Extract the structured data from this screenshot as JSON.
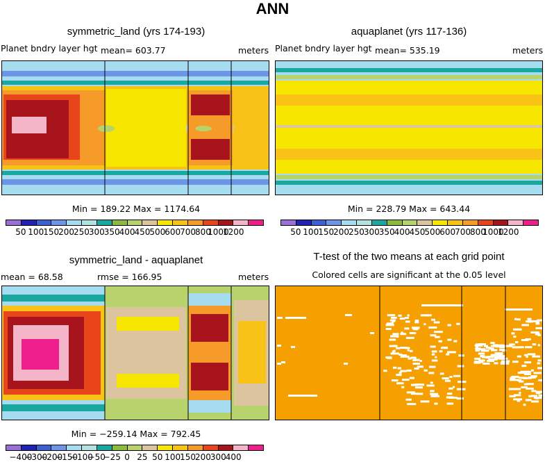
{
  "page_title": "ANN",
  "panels": [
    {
      "title": "symmetric_land (yrs 174-193)",
      "left_label": "Planet bndry layer hgt",
      "stat": "mean= 603.77",
      "units": "meters",
      "minmax": "Min = 189.22 Max = 1174.64",
      "colorbar_labels": [
        "50",
        "100",
        "150",
        "200",
        "250",
        "300",
        "350",
        "400",
        "450",
        "500",
        "600",
        "700",
        "800",
        "1000",
        "1200"
      ]
    },
    {
      "title": "aquaplanet (yrs 117-136)",
      "left_label": "Planet bndry layer hgt",
      "stat": "mean= 535.19",
      "units": "meters",
      "minmax": "Min = 228.79 Max = 643.44",
      "colorbar_labels": [
        "50",
        "100",
        "150",
        "200",
        "250",
        "300",
        "350",
        "400",
        "450",
        "500",
        "600",
        "700",
        "800",
        "1000",
        "1200"
      ]
    },
    {
      "title": "symmetric_land - aquaplanet",
      "left_label": "mean =   68.58",
      "stat": "rmse = 166.95",
      "units": "meters",
      "minmax": "Min = −259.14 Max = 792.45",
      "colorbar_labels": [
        "−400",
        "−300",
        "−200",
        "−150",
        "−100",
        "−50",
        "−25",
        "0",
        "25",
        "50",
        "100",
        "150",
        "200",
        "300",
        "400"
      ]
    },
    {
      "title": "T-test of the two means at each grid point",
      "subtitle": "Colored cells are significant at the 0.05 level"
    }
  ],
  "colors": {
    "abs_scale": [
      "#9b6fd8",
      "#2222b0",
      "#3a62d4",
      "#6f95e8",
      "#a6dcef",
      "#b2e3e0",
      "#19a7a0",
      "#8dbb3c",
      "#b8d36c",
      "#dcc59e",
      "#f6e600",
      "#f9c216",
      "#f69a2a",
      "#e8461a",
      "#a8141c",
      "#f5b5c8",
      "#ee1e8c"
    ],
    "diff_scale": [
      "#9b6fd8",
      "#2222b0",
      "#3a62d4",
      "#6f95e8",
      "#a6dcef",
      "#b2e3e0",
      "#19a7a0",
      "#8dbb3c",
      "#b8d36c",
      "#dcc59e",
      "#f6e600",
      "#f9c216",
      "#f69a2a",
      "#e8461a",
      "#a8141c",
      "#f5b5c8",
      "#ee1e8c"
    ],
    "ttest_fill": "#f5a000"
  },
  "chart_data": [
    {
      "type": "heatmap",
      "title": "symmetric_land (yrs 174-193)",
      "label": "Planet bndry layer hgt",
      "units": "meters",
      "mean": 603.77,
      "min": 189.22,
      "max": 1174.64,
      "contour_levels": [
        50,
        100,
        150,
        200,
        250,
        300,
        350,
        400,
        450,
        500,
        600,
        700,
        800,
        1000,
        1200
      ]
    },
    {
      "type": "heatmap",
      "title": "aquaplanet (yrs 117-136)",
      "label": "Planet bndry layer hgt",
      "units": "meters",
      "mean": 535.19,
      "min": 228.79,
      "max": 643.44,
      "contour_levels": [
        50,
        100,
        150,
        200,
        250,
        300,
        350,
        400,
        450,
        500,
        600,
        700,
        800,
        1000,
        1200
      ]
    },
    {
      "type": "heatmap",
      "title": "symmetric_land - aquaplanet",
      "units": "meters",
      "mean": 68.58,
      "rmse": 166.95,
      "min": -259.14,
      "max": 792.45,
      "contour_levels": [
        -400,
        -300,
        -200,
        -150,
        -100,
        -50,
        -25,
        0,
        25,
        50,
        100,
        150,
        200,
        300,
        400
      ]
    },
    {
      "type": "heatmap",
      "title": "T-test of the two means at each grid point",
      "subtitle": "Colored cells are significant at the 0.05 level"
    }
  ]
}
